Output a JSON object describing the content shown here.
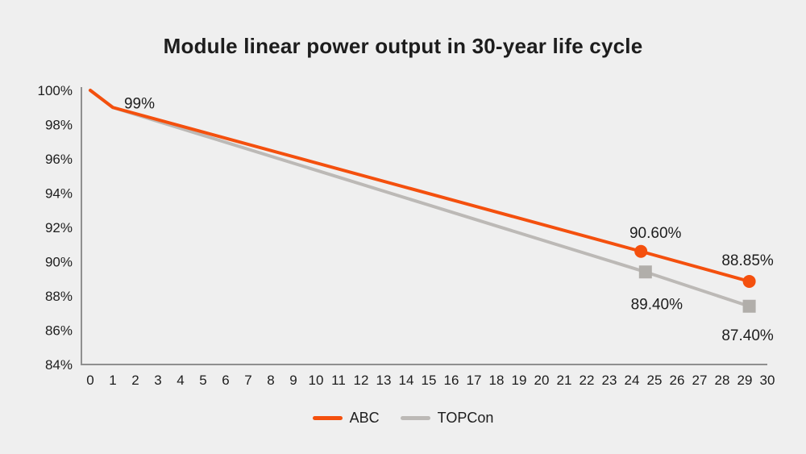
{
  "colors": {
    "background": "#efefef",
    "text": "#1d1d1d",
    "axis": "#8f8f8f",
    "accent_orange": "#f4500e",
    "accent_gray": "#bcb9b6"
  },
  "chart_data": {
    "type": "line",
    "title": "Module linear power output in 30-year life cycle",
    "xlabel": "",
    "ylabel": "",
    "xlim": [
      0,
      30
    ],
    "ylim": [
      84,
      100
    ],
    "grid": false,
    "legend_position": "bottom-center",
    "x_ticks": [
      0,
      1,
      2,
      3,
      4,
      5,
      6,
      7,
      8,
      9,
      10,
      11,
      12,
      13,
      14,
      15,
      16,
      17,
      18,
      19,
      20,
      21,
      22,
      23,
      24,
      25,
      26,
      27,
      28,
      29,
      30
    ],
    "y_ticks": [
      {
        "label": "100%",
        "value": 100
      },
      {
        "label": "98%",
        "value": 98
      },
      {
        "label": "96%",
        "value": 96
      },
      {
        "label": "94%",
        "value": 94
      },
      {
        "label": "92%",
        "value": 92
      },
      {
        "label": "90%",
        "value": 90
      },
      {
        "label": "88%",
        "value": 88
      },
      {
        "label": "86%",
        "value": 86
      },
      {
        "label": "84%",
        "value": 84
      }
    ],
    "series": [
      {
        "name": "ABC",
        "color": "#f4500e",
        "marker_color": "#f4500e",
        "marker": "circle",
        "points": [
          {
            "year": 0,
            "value": 100,
            "plot_x": 0
          },
          {
            "year": 1,
            "value": 99,
            "plot_x": 1,
            "label": "99%",
            "label_dx": 33,
            "label_dy": 1
          },
          {
            "year": 25,
            "value": 90.6,
            "plot_x": 24.4,
            "label": "90.60%",
            "label_dx": 18,
            "label_dy": -17,
            "show_marker": true
          },
          {
            "year": 30,
            "value": 88.85,
            "plot_x": 29.2,
            "label": "88.85%",
            "label_dx": -2,
            "label_dy": -20,
            "show_marker": true
          }
        ]
      },
      {
        "name": "TOPCon",
        "color": "#bcb9b6",
        "marker_color": "#b1aeaa",
        "marker": "square",
        "points": [
          {
            "year": 0,
            "value": 100,
            "plot_x": 0
          },
          {
            "year": 1,
            "value": 99,
            "plot_x": 1
          },
          {
            "year": 25,
            "value": 89.4,
            "plot_x": 24.6,
            "label": "89.40%",
            "label_dx": 14,
            "label_dy": 46,
            "show_marker": true
          },
          {
            "year": 30,
            "value": 87.4,
            "plot_x": 29.2,
            "label": "87.40%",
            "label_dx": -2,
            "label_dy": 42,
            "show_marker": true
          }
        ]
      }
    ]
  }
}
